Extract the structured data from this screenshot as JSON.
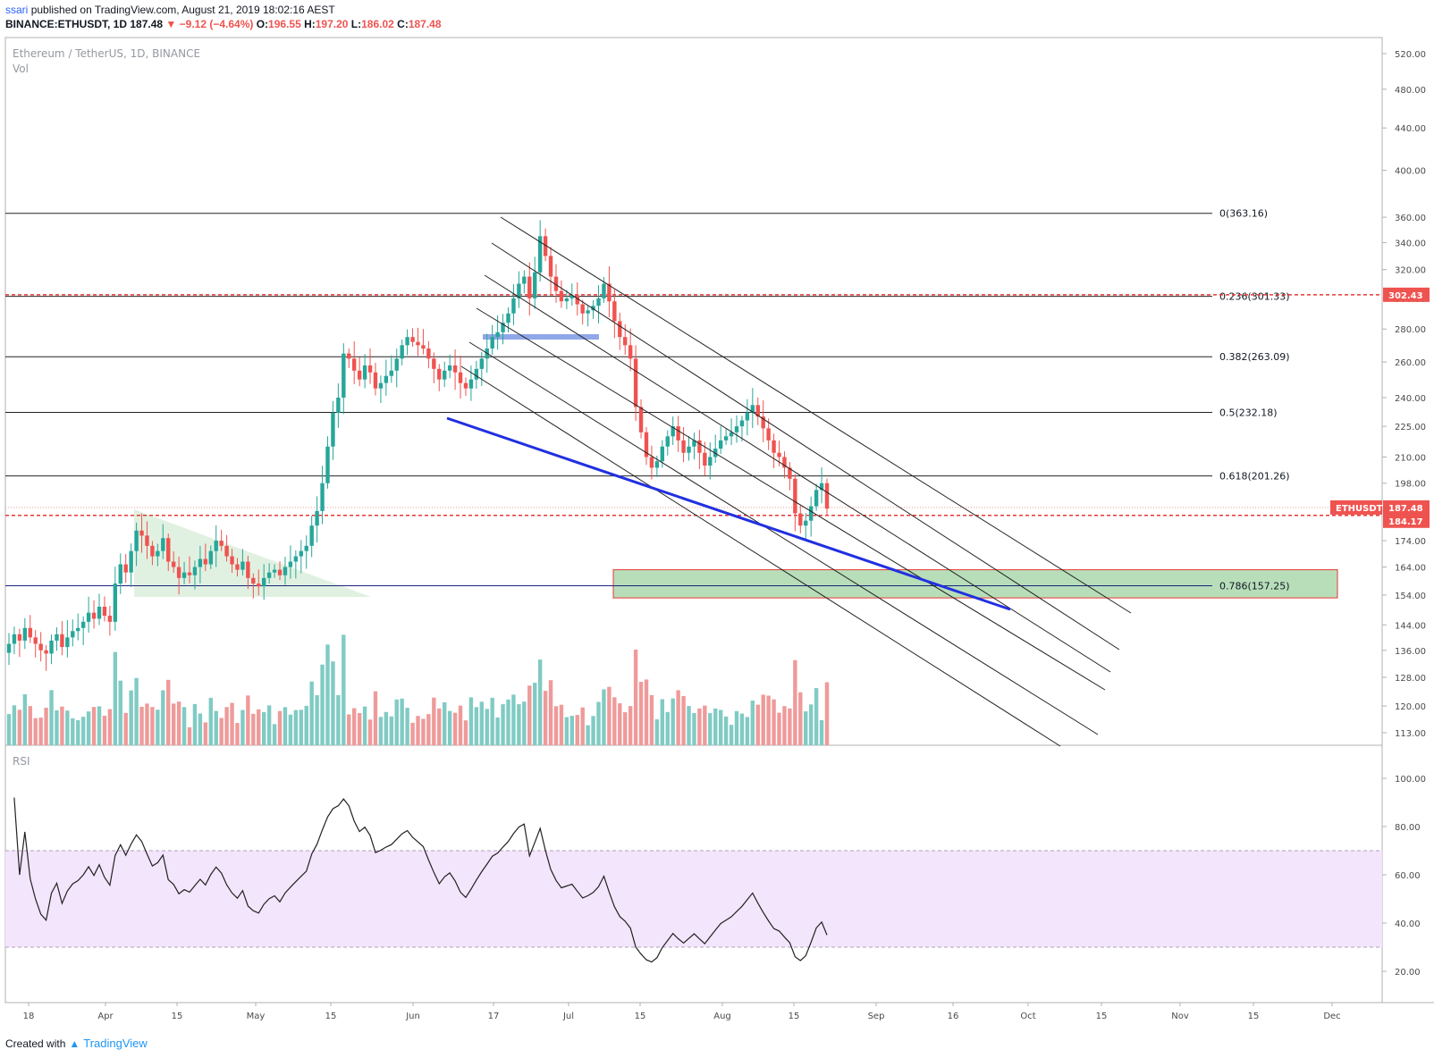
{
  "header": {
    "publisher": "ssari",
    "published_text": "published on TradingView.com, August 21, 2019 18:02:16 AEST",
    "symbol": "BINANCE:ETHUSDT, 1D",
    "last": "187.48",
    "change": "−9.12 (−4.64%)",
    "open": "196.55",
    "high": "197.20",
    "low": "186.02",
    "close": "187.48"
  },
  "legend": {
    "name": "Ethereum / TetherUS, 1D, BINANCE",
    "vol": "Vol",
    "rsi": "RSI"
  },
  "footer": {
    "created": "Created with",
    "brand": "TradingView"
  },
  "colors": {
    "up": "#26a69a",
    "down": "#ef5350",
    "rsi_band": "#f3e5fc",
    "trend": "#2130e0",
    "zone": "#a5d6a7"
  },
  "chart_data": {
    "type": "candlestick",
    "x_ticks": [
      "18",
      "Apr",
      "15",
      "May",
      "15",
      "Jun",
      "17",
      "Jul",
      "15",
      "Aug",
      "15",
      "Sep",
      "16",
      "Oct",
      "15",
      "Nov",
      "15",
      "Dec"
    ],
    "price_axis": {
      "scale": "log",
      "ylim": [
        108,
        540
      ],
      "ticks": [
        113,
        120,
        128,
        136,
        144,
        154,
        164,
        174,
        186,
        198,
        210,
        225,
        240,
        260,
        280,
        300,
        320,
        340,
        360,
        400,
        440,
        480,
        520
      ],
      "tick_labels": [
        "113.00",
        "120.00",
        "128.00",
        "136.00",
        "144.00",
        "154.00",
        "164.00",
        "174.00",
        "186.00",
        "198.00",
        "210.00",
        "225.00",
        "240.00",
        "260.00",
        "280.00",
        "300.00",
        "320.00",
        "340.00",
        "360.00",
        "400.00",
        "440.00",
        "480.00",
        "520.00"
      ]
    },
    "price_labels": [
      {
        "text": "302.43",
        "value": 302.43,
        "color": "#ef5350"
      },
      {
        "text": "ETHUSDT",
        "value": 187.48,
        "color": "#ef5350"
      },
      {
        "text": "187.48",
        "value": 187.48,
        "color": "#ef5350"
      },
      {
        "text": "184.17",
        "value": 184.17,
        "color": "#ef5350"
      }
    ],
    "fib_levels": [
      {
        "label": "0(363.16)",
        "value": 363.16
      },
      {
        "label": "0.236(301.33)",
        "value": 301.33
      },
      {
        "label": "0.382(263.09)",
        "value": 263.09
      },
      {
        "label": "0.5(232.18)",
        "value": 232.18
      },
      {
        "label": "0.618(201.26)",
        "value": 201.26
      },
      {
        "label": "0.786(157.25)",
        "value": 157.25
      }
    ],
    "support_resistance": [
      302.43,
      184.17
    ],
    "demand_zone": {
      "from": 153,
      "to": 163
    },
    "rsi_axis": {
      "ylim": [
        10,
        110
      ],
      "ticks": [
        20,
        40,
        60,
        80,
        100
      ],
      "tick_labels": [
        "20.00",
        "40.00",
        "60.00",
        "80.00",
        "100.00"
      ],
      "band": [
        30,
        70
      ]
    },
    "closes": [
      138,
      141,
      139,
      143,
      140,
      138,
      136,
      135,
      139,
      141,
      137,
      140,
      142,
      143,
      145,
      148,
      146,
      150,
      147,
      145,
      158,
      165,
      162,
      170,
      178,
      176,
      172,
      168,
      170,
      175,
      166,
      164,
      160,
      162,
      161,
      164,
      167,
      165,
      170,
      174,
      172,
      168,
      165,
      163,
      166,
      160,
      158,
      157,
      160,
      162,
      163,
      161,
      164,
      166,
      168,
      170,
      172,
      180,
      186,
      198,
      215,
      232,
      240,
      265,
      262,
      255,
      250,
      258,
      254,
      245,
      248,
      252,
      255,
      262,
      270,
      275,
      272,
      270,
      268,
      262,
      256,
      250,
      255,
      258,
      254,
      248,
      245,
      250,
      256,
      262,
      268,
      275,
      278,
      284,
      290,
      300,
      310,
      315,
      300,
      318,
      345,
      330,
      315,
      305,
      298,
      300,
      302,
      296,
      290,
      292,
      295,
      300,
      310,
      298,
      285,
      275,
      270,
      262,
      235,
      222,
      210,
      205,
      208,
      215,
      220,
      225,
      218,
      212,
      215,
      218,
      212,
      206,
      210,
      214,
      218,
      220,
      222,
      225,
      228,
      232,
      236,
      230,
      224,
      218,
      212,
      210,
      205,
      200,
      185,
      180,
      182,
      188,
      195,
      198,
      187
    ]
  }
}
